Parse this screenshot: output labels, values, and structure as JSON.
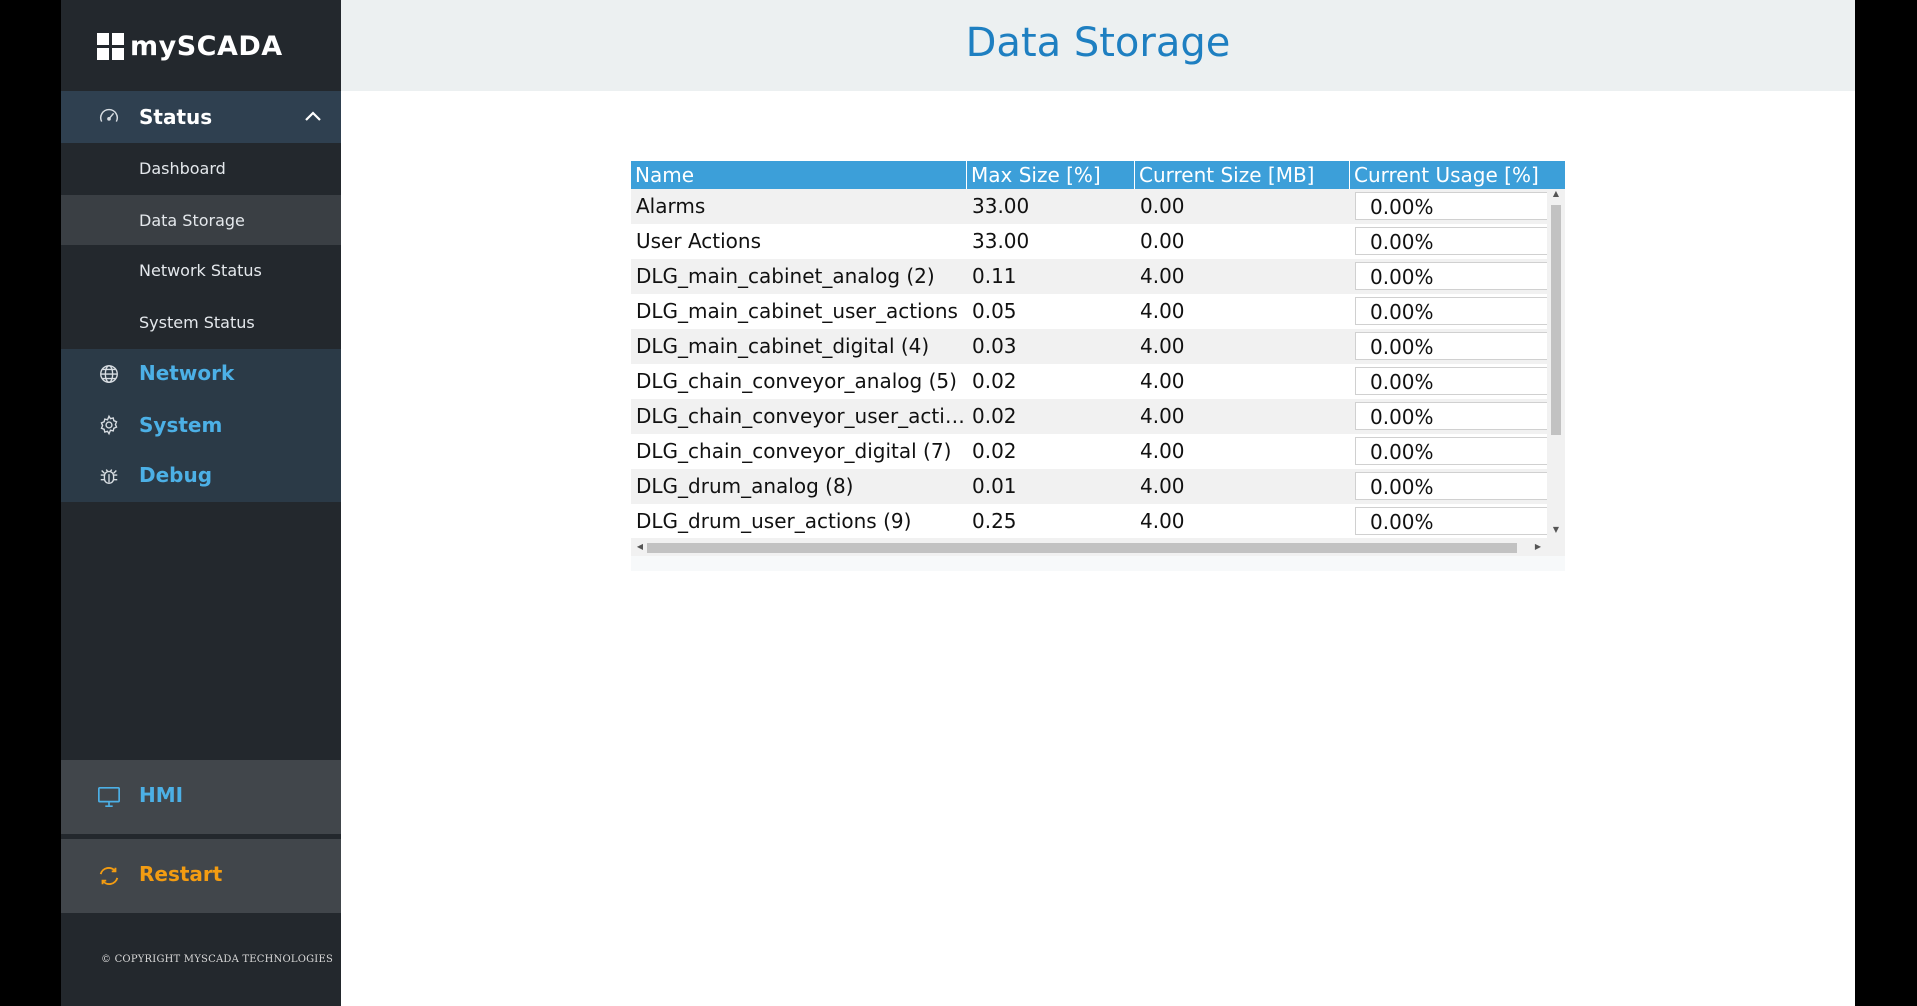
{
  "app": {
    "logo_text": "mySCADA"
  },
  "sidebar": {
    "status": {
      "label": "Status",
      "icon": "gauge-icon"
    },
    "submenu": [
      {
        "label": "Dashboard",
        "active": false
      },
      {
        "label": "Data Storage",
        "active": true
      },
      {
        "label": "Network Status",
        "active": false
      },
      {
        "label": "System Status",
        "active": false
      }
    ],
    "network": {
      "label": "Network",
      "icon": "globe-icon"
    },
    "system": {
      "label": "System",
      "icon": "gear-icon"
    },
    "debug": {
      "label": "Debug",
      "icon": "bug-icon"
    },
    "hmi": {
      "label": "HMI",
      "icon": "monitor-icon"
    },
    "restart": {
      "label": "Restart",
      "icon": "refresh-icon"
    },
    "copyright": "© COPYRIGHT MYSCADA TECHNOLOGIES"
  },
  "page": {
    "title": "Data Storage"
  },
  "table": {
    "columns": [
      "Name",
      "Max Size [%]",
      "Current Size [MB]",
      "Current Usage [%]"
    ],
    "rows": [
      {
        "name": "Alarms",
        "max": "33.00",
        "current": "0.00",
        "usage": "0.00%"
      },
      {
        "name": "User Actions",
        "max": "33.00",
        "current": "0.00",
        "usage": "0.00%"
      },
      {
        "name": "DLG_main_cabinet_analog (2)",
        "max": "0.11",
        "current": "4.00",
        "usage": "0.00%"
      },
      {
        "name": "DLG_main_cabinet_user_actions",
        "max": "0.05",
        "current": "4.00",
        "usage": "0.00%"
      },
      {
        "name": "DLG_main_cabinet_digital (4)",
        "max": "0.03",
        "current": "4.00",
        "usage": "0.00%"
      },
      {
        "name": "DLG_chain_conveyor_analog (5)",
        "max": "0.02",
        "current": "4.00",
        "usage": "0.00%"
      },
      {
        "name": "DLG_chain_conveyor_user_acti…",
        "max": "0.02",
        "current": "4.00",
        "usage": "0.00%"
      },
      {
        "name": "DLG_chain_conveyor_digital (7)",
        "max": "0.02",
        "current": "4.00",
        "usage": "0.00%"
      },
      {
        "name": "DLG_drum_analog (8)",
        "max": "0.01",
        "current": "4.00",
        "usage": "0.00%"
      },
      {
        "name": "DLG_drum_user_actions (9)",
        "max": "0.25",
        "current": "4.00",
        "usage": "0.00%"
      }
    ]
  },
  "colors": {
    "accent_blue": "#1e7fc1",
    "header_blue": "#3c9fd9",
    "restart_orange": "#f39c12",
    "sidebar_dark": "#23282d"
  }
}
